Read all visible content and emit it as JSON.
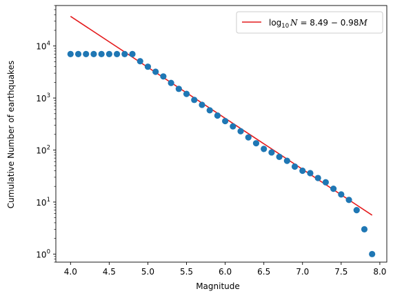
{
  "chart_data": {
    "type": "scatter",
    "xlabel": "Magnitude",
    "ylabel": "Cumulative Number of earthquakes",
    "xlim": [
      3.81,
      8.09
    ],
    "ylim": [
      0.7,
      60000
    ],
    "yscale": "log",
    "grid": false,
    "legend_position": "top-right",
    "x_ticks": [
      4.0,
      4.5,
      5.0,
      5.5,
      6.0,
      6.5,
      7.0,
      7.5,
      8.0
    ],
    "x_tick_labels": [
      "4.0",
      "4.5",
      "5.0",
      "5.5",
      "6.0",
      "6.5",
      "7.0",
      "7.5",
      "8.0"
    ],
    "y_ticks": [
      1,
      10,
      100,
      1000,
      10000
    ],
    "y_tick_labels": [
      {
        "base": "10",
        "exp": "0"
      },
      {
        "base": "10",
        "exp": "1"
      },
      {
        "base": "10",
        "exp": "2"
      },
      {
        "base": "10",
        "exp": "3"
      },
      {
        "base": "10",
        "exp": "4"
      }
    ],
    "points": {
      "color": "#1f77b4",
      "x": [
        4.0,
        4.1,
        4.2,
        4.3,
        4.4,
        4.5,
        4.6,
        4.7,
        4.8,
        4.9,
        5.0,
        5.1,
        5.2,
        5.3,
        5.4,
        5.5,
        5.6,
        5.7,
        5.8,
        5.9,
        6.0,
        6.1,
        6.2,
        6.3,
        6.4,
        6.5,
        6.6,
        6.7,
        6.8,
        6.9,
        7.0,
        7.1,
        7.2,
        7.3,
        7.4,
        7.5,
        7.6,
        7.7,
        7.8,
        7.9
      ],
      "y": [
        7000,
        7000,
        7000,
        7000,
        7000,
        7000,
        7000,
        7000,
        7000,
        5100,
        4000,
        3200,
        2600,
        1950,
        1500,
        1200,
        920,
        740,
        580,
        460,
        360,
        285,
        230,
        175,
        135,
        105,
        90,
        74,
        62,
        48,
        40,
        36,
        29,
        24,
        18,
        14,
        11,
        7,
        3,
        1
      ]
    },
    "fit_line": {
      "color": "#e41a1c",
      "intercept": 8.49,
      "slope": -0.98,
      "x_range": [
        4.0,
        7.9
      ],
      "legend": {
        "prefix": "log",
        "sub": "10",
        "var": "N",
        "rest": " = 8.49 − 0.98",
        "var2": "M"
      }
    }
  }
}
